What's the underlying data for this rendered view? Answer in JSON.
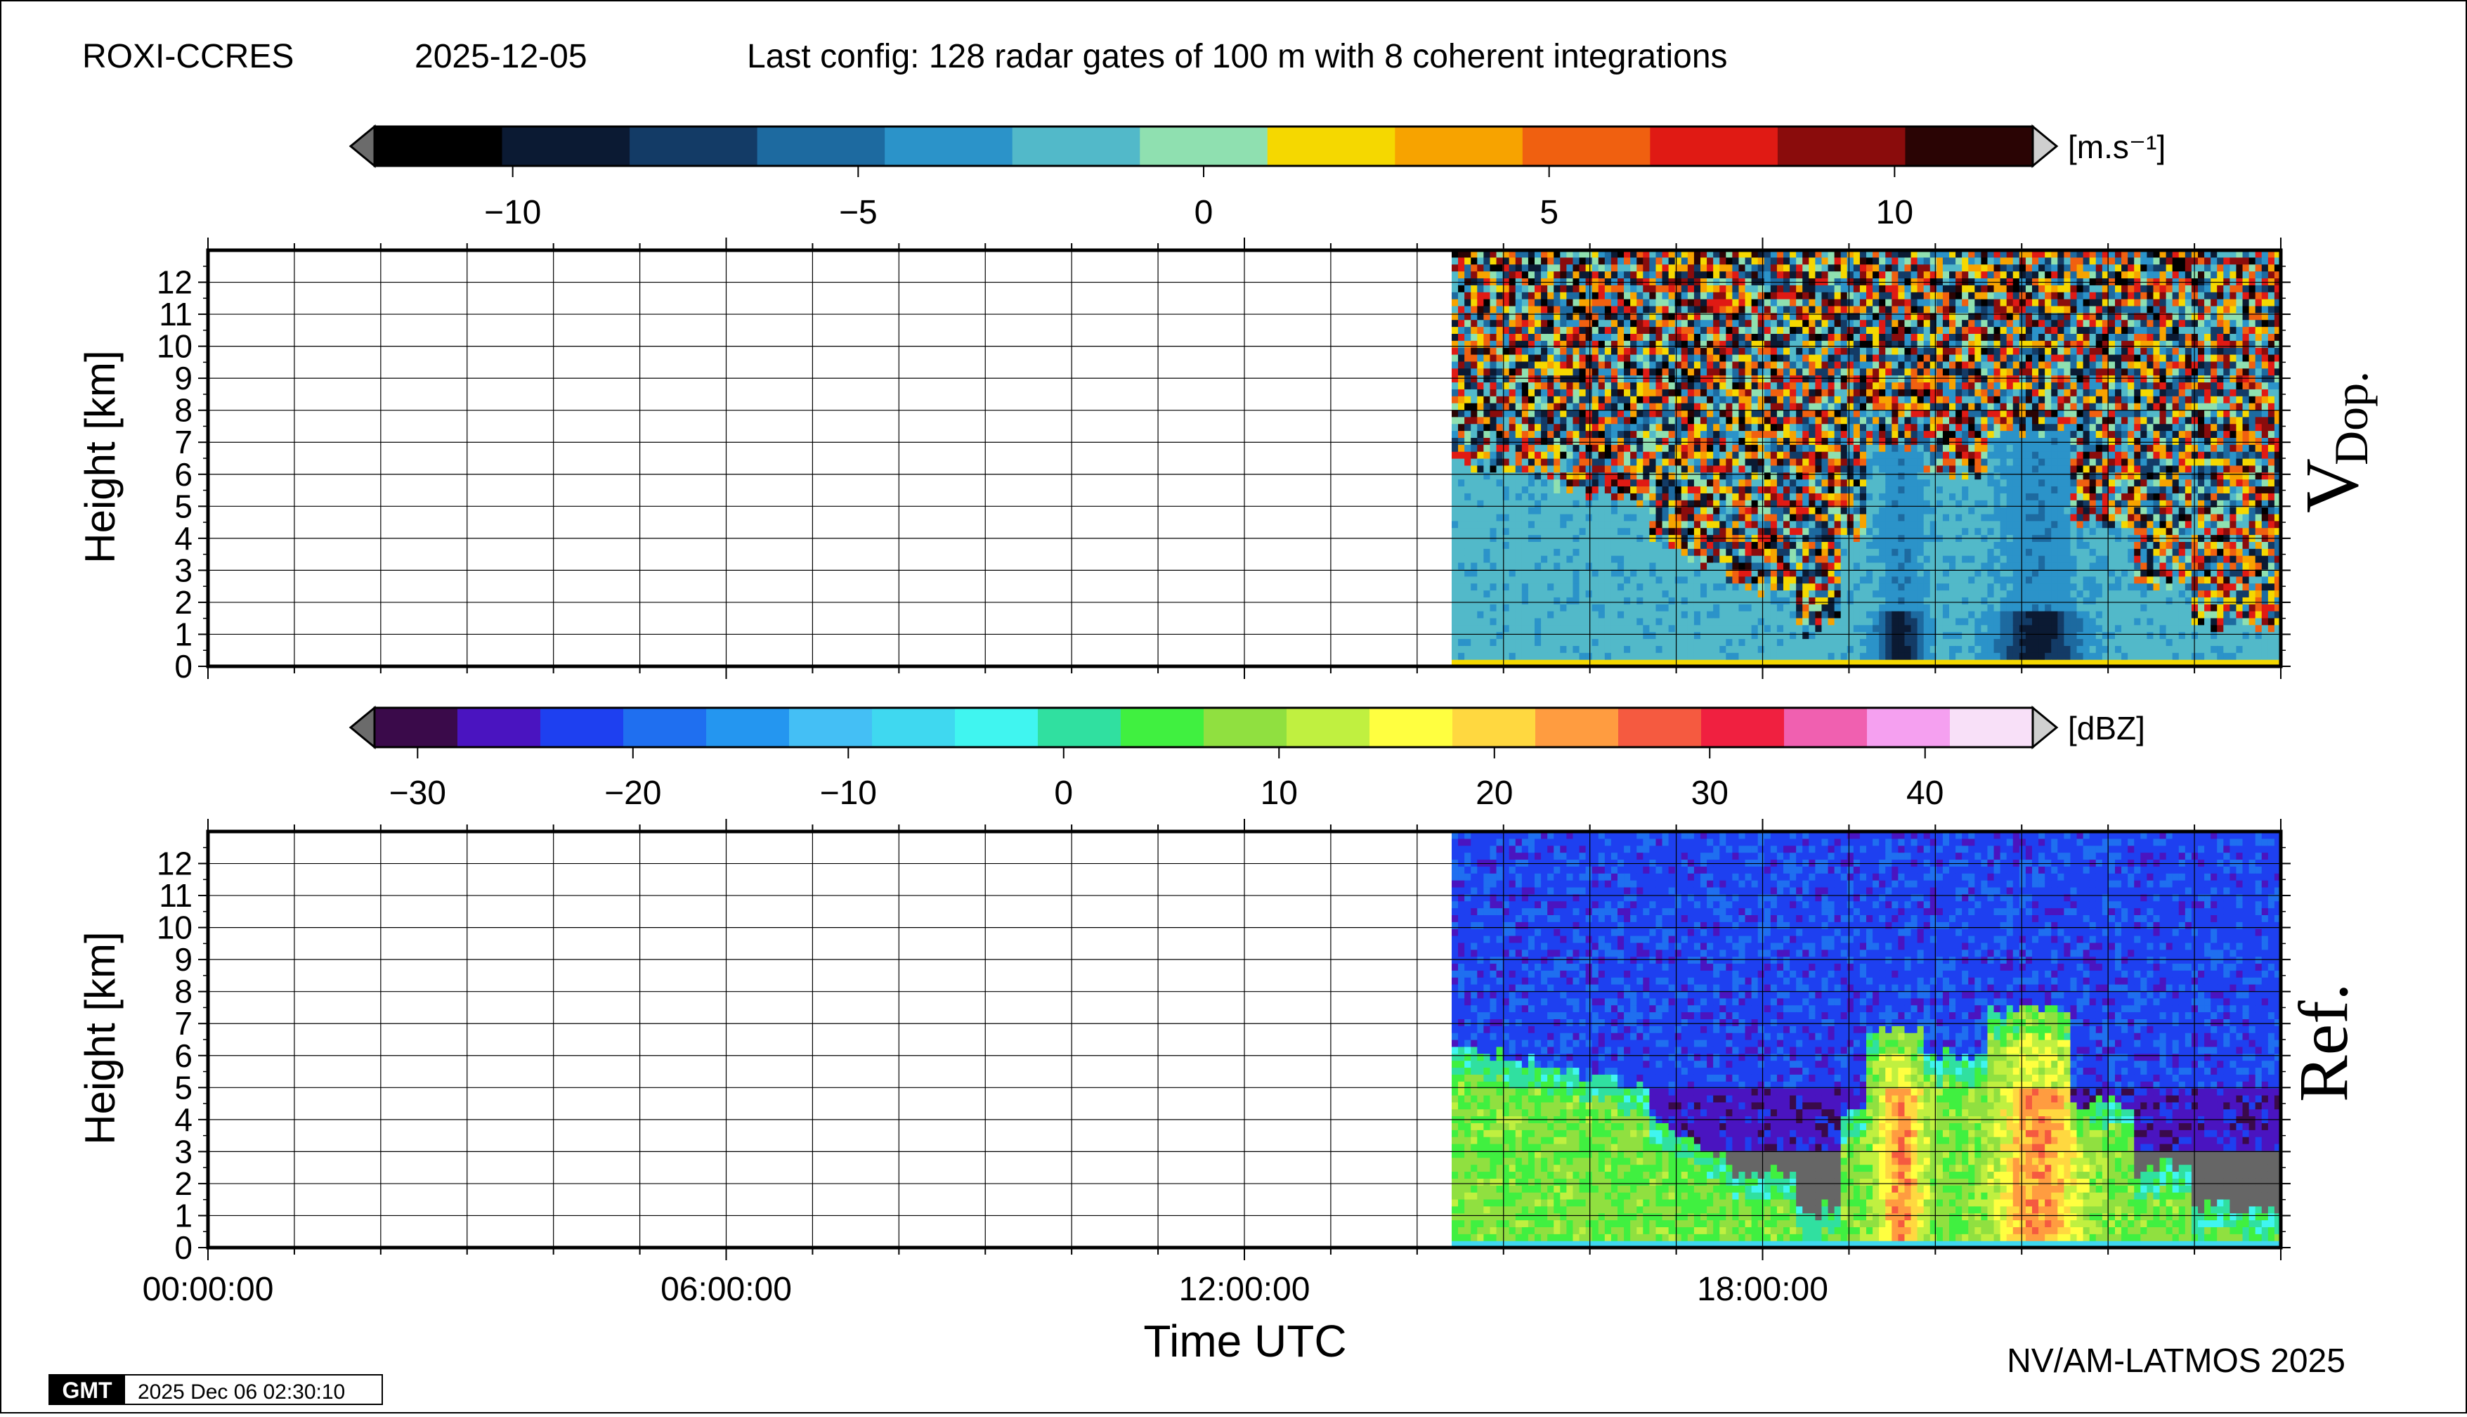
{
  "header": {
    "site": "ROXI-CCRES",
    "date": "2025-12-05",
    "config": "Last config: 128 radar gates of 100 m with 8 coherent integrations"
  },
  "footer": {
    "credit": "NV/AM-LATMOS 2025",
    "gmt_logo": "GMT",
    "timestamp": "2025 Dec 06 02:30:10"
  },
  "chart_data": [
    {
      "type": "heatmap",
      "panel_label": "V",
      "panel_label_sub": "Dop.",
      "ylabel": "Height [km]",
      "ylim": [
        0,
        13
      ],
      "yticks": [
        0,
        1,
        2,
        3,
        4,
        5,
        6,
        7,
        8,
        9,
        10,
        11,
        12
      ],
      "xlim_hours": [
        0,
        24
      ],
      "data_start_hour": 14.4,
      "colorbar": {
        "unit": "[m.s⁻¹]",
        "range": [
          -12,
          12
        ],
        "ticks": [
          -10,
          -5,
          0,
          5,
          10
        ],
        "tick_labels": [
          "−10",
          "−5",
          "0",
          "5",
          "10"
        ],
        "colors": [
          "#000000",
          "#0b1a33",
          "#133b66",
          "#1d6aa0",
          "#2b93c9",
          "#52b9c9",
          "#8fe0b0",
          "#f5d800",
          "#f7a300",
          "#f06010",
          "#e01a14",
          "#8a0c0c",
          "#2a0404"
        ]
      },
      "echo": "signal up to about 6-7 km between 14:30 and 24:00 UTC, noise above; two convective columns near 19:30 and 21:00 UTC"
    },
    {
      "type": "heatmap",
      "panel_label": "Ref.",
      "ylabel": "Height [km]",
      "xlabel": "Time UTC",
      "ylim": [
        0,
        13
      ],
      "yticks": [
        0,
        1,
        2,
        3,
        4,
        5,
        6,
        7,
        8,
        9,
        10,
        11,
        12
      ],
      "xlim_hours": [
        0,
        24
      ],
      "xticks": [
        "00:00:00",
        "06:00:00",
        "12:00:00",
        "18:00:00"
      ],
      "data_start_hour": 14.4,
      "colorbar": {
        "unit": "[dBZ]",
        "range": [
          -32,
          45
        ],
        "ticks": [
          -30,
          -20,
          -10,
          0,
          10,
          20,
          30,
          40
        ],
        "tick_labels": [
          "−30",
          "−20",
          "−10",
          "0",
          "10",
          "20",
          "30",
          "40"
        ],
        "colors": [
          "#3a0a4a",
          "#4a14c0",
          "#1e40f0",
          "#1f6ff0",
          "#2496f0",
          "#44bff5",
          "#3fd8f0",
          "#40f5f0",
          "#30e0a0",
          "#40f040",
          "#90e040",
          "#c0f040",
          "#ffff40",
          "#ffd840",
          "#ff9c40",
          "#f55a40",
          "#f02040",
          "#f060b0",
          "#f5a0f0",
          "#f8e0f8"
        ]
      },
      "echo": "background noise -25 to -20 dBZ above 3 km; cloud echo 0-15 dBZ between 14:30 and 24:00 UTC; cores up to 30 dBZ near 19:30 and 21:00 UTC"
    }
  ]
}
